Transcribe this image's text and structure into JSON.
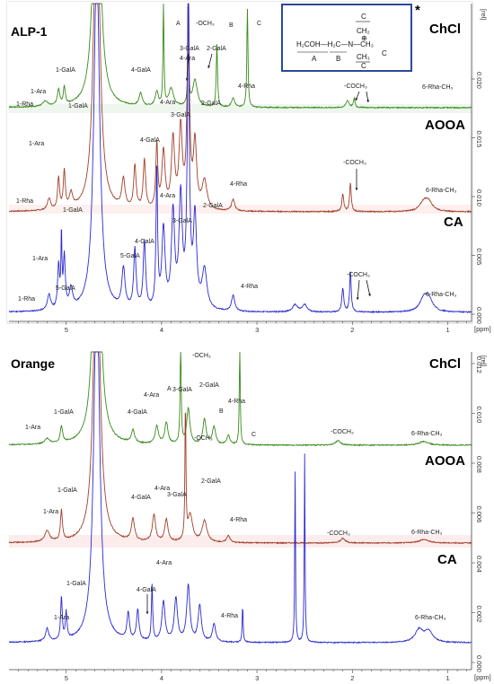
{
  "chart_data": [
    {
      "type": "line",
      "title": "ALP-1",
      "x_unit": "[ppm]",
      "y_unit": "[rel]",
      "x_ticks": [
        5,
        4,
        3,
        2,
        1
      ],
      "y_ticks": [
        "0.000",
        "0.005",
        "0.010",
        "0.015",
        "0.020"
      ],
      "series": [
        {
          "name": "ChCl",
          "color": "#3a8a1e"
        },
        {
          "name": "AOOA",
          "color": "#a0402a"
        },
        {
          "name": "CA",
          "color": "#2a2acf"
        }
      ],
      "annotations": [
        "1-Rha",
        "1-Ara",
        "1-GalA",
        "4-GalA",
        "4-Ara",
        "A",
        "-OCH₃",
        "3-GalA",
        "2-GalA",
        "B",
        "C",
        "4-Rha",
        "-COCH₃",
        "6-Rha-CH₃",
        "1-GalA",
        "1-Ara",
        "4-GalA",
        "3-GalA",
        "2-GalA",
        "4-Ara",
        "4-Rha",
        "-COCH₃",
        "6-Rha-CH₃",
        "1-Rha",
        "1-GalA",
        "1-Ara",
        "5-GalA",
        "4-GalA",
        "3-GalA",
        "2-GalA",
        "4-Ara",
        "4-Rha",
        "-COCH₃",
        "6-Rha-CH₃",
        "1-Rha",
        "5-GalA"
      ],
      "structure": {
        "row1": "H₂COH—H₂C—N—CH₃",
        "top": "CH₃",
        "topc": "C",
        "upper": "CH₂",
        "bottom": "CH₃",
        "bottomc": "C",
        "a": "A",
        "b": "B",
        "c": "C",
        "plus": "⊕",
        "star": "*"
      }
    },
    {
      "type": "line",
      "title": "Orange",
      "x_unit": "[ppm]",
      "y_unit": "[rel]",
      "x_ticks": [
        5,
        4,
        3,
        2,
        1
      ],
      "y_ticks": [
        "0.000",
        "0.002",
        "0.004",
        "0.006",
        "0.008",
        "0.010",
        "0.012"
      ],
      "series": [
        {
          "name": "ChCl",
          "color": "#3a8a1e"
        },
        {
          "name": "AOOA",
          "color": "#a0402a"
        },
        {
          "name": "CA",
          "color": "#2a2acf"
        }
      ],
      "annotations": [
        "1-Ara",
        "1-GalA",
        "4-GalA",
        "4-Ara",
        "A",
        "3-GalA",
        "2-GalA",
        "-OCH₃",
        "B",
        "4-Rha",
        "C",
        "-COCH₃",
        "6-Rha-CH₃",
        "1-GalA",
        "1-Ara",
        "4-GalA",
        "4-Ara",
        "3-GalA",
        "-OCH₃",
        "2-GalA",
        "4-Rha",
        "-COCH₃",
        "6-Rha-CH₃",
        "1-GalA",
        "1-Ara",
        "4-GalA",
        "4-Ara",
        "4-Rha",
        "6-Rha-CH₃"
      ]
    }
  ]
}
